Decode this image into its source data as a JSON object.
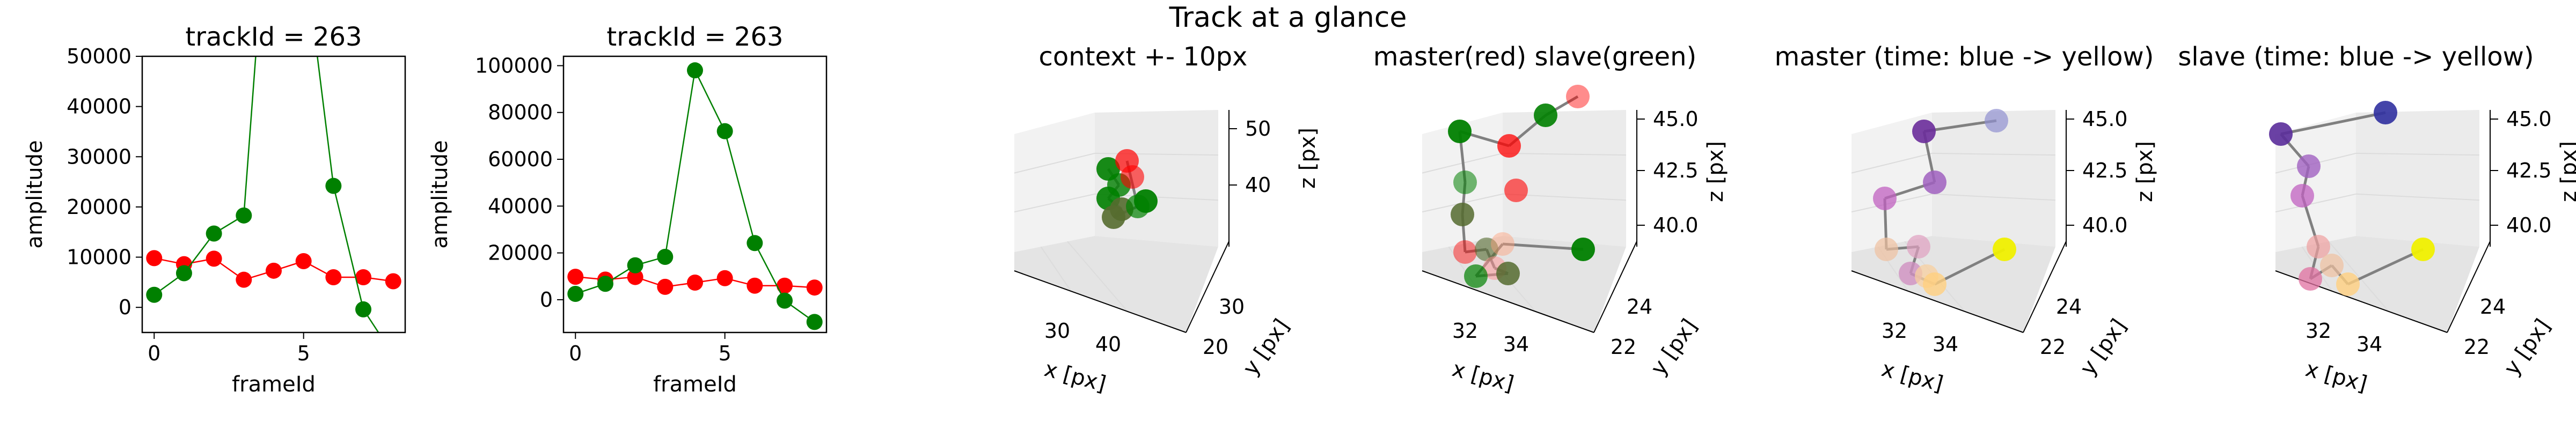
{
  "suptitle": "Track at a glance",
  "chart_data": [
    {
      "type": "line",
      "title": "trackId = 263",
      "xlabel": "frameId",
      "ylabel": "amplitude",
      "xlim": [
        -0.4,
        8.4
      ],
      "ylim": [
        -5000,
        50000
      ],
      "xticks": [
        0,
        5
      ],
      "yticks": [
        0,
        10000,
        20000,
        30000,
        40000,
        50000
      ],
      "series": [
        {
          "color": "#ff0000",
          "x": [
            0,
            1,
            2,
            3,
            4,
            5,
            6,
            7,
            8
          ],
          "y": [
            9800,
            8600,
            9700,
            5500,
            7300,
            9200,
            6000,
            6000,
            5200
          ]
        },
        {
          "color": "#008000",
          "x": [
            0,
            1,
            2,
            3,
            4,
            5,
            6,
            7,
            8
          ],
          "y": [
            2500,
            6800,
            14700,
            18300,
            98000,
            72000,
            24200,
            -400,
            -9500
          ]
        }
      ]
    },
    {
      "type": "line",
      "title": "trackId = 263",
      "xlabel": "frameId",
      "ylabel": "amplitude",
      "xlim": [
        -0.4,
        8.4
      ],
      "ylim": [
        -14000,
        104000
      ],
      "xticks": [
        0,
        5
      ],
      "yticks": [
        0,
        20000,
        40000,
        60000,
        80000,
        100000
      ],
      "series": [
        {
          "color": "#ff0000",
          "x": [
            0,
            1,
            2,
            3,
            4,
            5,
            6,
            7,
            8
          ],
          "y": [
            9800,
            8600,
            9700,
            5500,
            7300,
            9200,
            6000,
            6000,
            5200
          ]
        },
        {
          "color": "#008000",
          "x": [
            0,
            1,
            2,
            3,
            4,
            5,
            6,
            7,
            8
          ],
          "y": [
            2500,
            6800,
            14700,
            18300,
            98000,
            72000,
            24200,
            -400,
            -9500
          ]
        }
      ]
    },
    {
      "type": "scatter",
      "title": "context +- 10px",
      "xlabel": "x [px]",
      "ylabel": "y [px]",
      "zlabel": "z [px]",
      "xticks": [
        "30",
        "40"
      ],
      "yticks": [
        "20",
        "30"
      ],
      "zticks": [
        "40",
        "50"
      ]
    },
    {
      "type": "scatter",
      "title": "master(red) slave(green)",
      "xlabel": "x [px]",
      "ylabel": "y [px]",
      "zlabel": "z [px]",
      "xticks": [
        "32",
        "34"
      ],
      "yticks": [
        "22",
        "24"
      ],
      "zticks": [
        "40.0",
        "42.5",
        "45.0"
      ]
    },
    {
      "type": "scatter",
      "title": "master (time: blue -> yellow)",
      "xlabel": "x [px]",
      "ylabel": "y [px]",
      "zlabel": "z [px]",
      "xticks": [
        "32",
        "34"
      ],
      "yticks": [
        "22",
        "24"
      ],
      "zticks": [
        "40.0",
        "42.5",
        "45.0"
      ]
    },
    {
      "type": "scatter",
      "title": "slave (time: blue -> yellow)",
      "xlabel": "x [px]",
      "ylabel": "y [px]",
      "zlabel": "z [px]",
      "xticks": [
        "32",
        "34"
      ],
      "yticks": [
        "22",
        "24"
      ],
      "zticks": [
        "40.0",
        "42.5",
        "45.0"
      ]
    }
  ]
}
